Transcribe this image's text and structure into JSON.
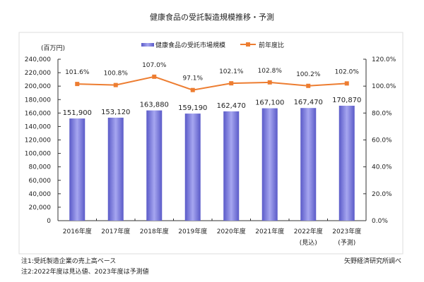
{
  "chart_data": {
    "type": "bar",
    "title": "健康食品の受託製造規模推移・予測",
    "ylabel": "(百万円)",
    "categories": [
      "2016年度",
      "2017年度",
      "2018年度",
      "2019年度",
      "2020年度",
      "2021年度",
      "2022年度",
      "2023年度"
    ],
    "category_sublabels": [
      "",
      "",
      "",
      "",
      "",
      "",
      "(見込)",
      "(予測)"
    ],
    "series": [
      {
        "name": "健康食品の受託市場規模",
        "type": "bar",
        "axis": "left",
        "color": "#7b7bdc",
        "values": [
          151900,
          153120,
          163880,
          159190,
          162470,
          167100,
          167470,
          170870
        ],
        "labels": [
          "151,900",
          "153,120",
          "163,880",
          "159,190",
          "162,470",
          "167,100",
          "167,470",
          "170,870"
        ]
      },
      {
        "name": "前年度比",
        "type": "line",
        "axis": "right",
        "color": "#ed7d31",
        "values": [
          101.6,
          100.8,
          107.0,
          97.1,
          102.1,
          102.8,
          100.2,
          102.0
        ],
        "labels": [
          "101.6%",
          "100.8%",
          "107.0%",
          "97.1%",
          "102.1%",
          "102.8%",
          "100.2%",
          "102.0%"
        ]
      }
    ],
    "ylim": [
      0,
      240000
    ],
    "y2lim": [
      0,
      120
    ],
    "yticks": [
      "0",
      "20,000",
      "40,000",
      "60,000",
      "80,000",
      "100,000",
      "120,000",
      "140,000",
      "160,000",
      "180,000",
      "200,000",
      "220,000",
      "240,000"
    ],
    "y2ticks": [
      "0.0%",
      "20.0%",
      "40.0%",
      "60.0%",
      "80.0%",
      "100.0%",
      "120.0%"
    ],
    "legend": "top-center",
    "grid": false
  },
  "notes": [
    "注1:受託製造企業の売上高ベース",
    "注2:2022年度は見込値、2023年度は予測値"
  ],
  "source": "矢野経済研究所調べ"
}
